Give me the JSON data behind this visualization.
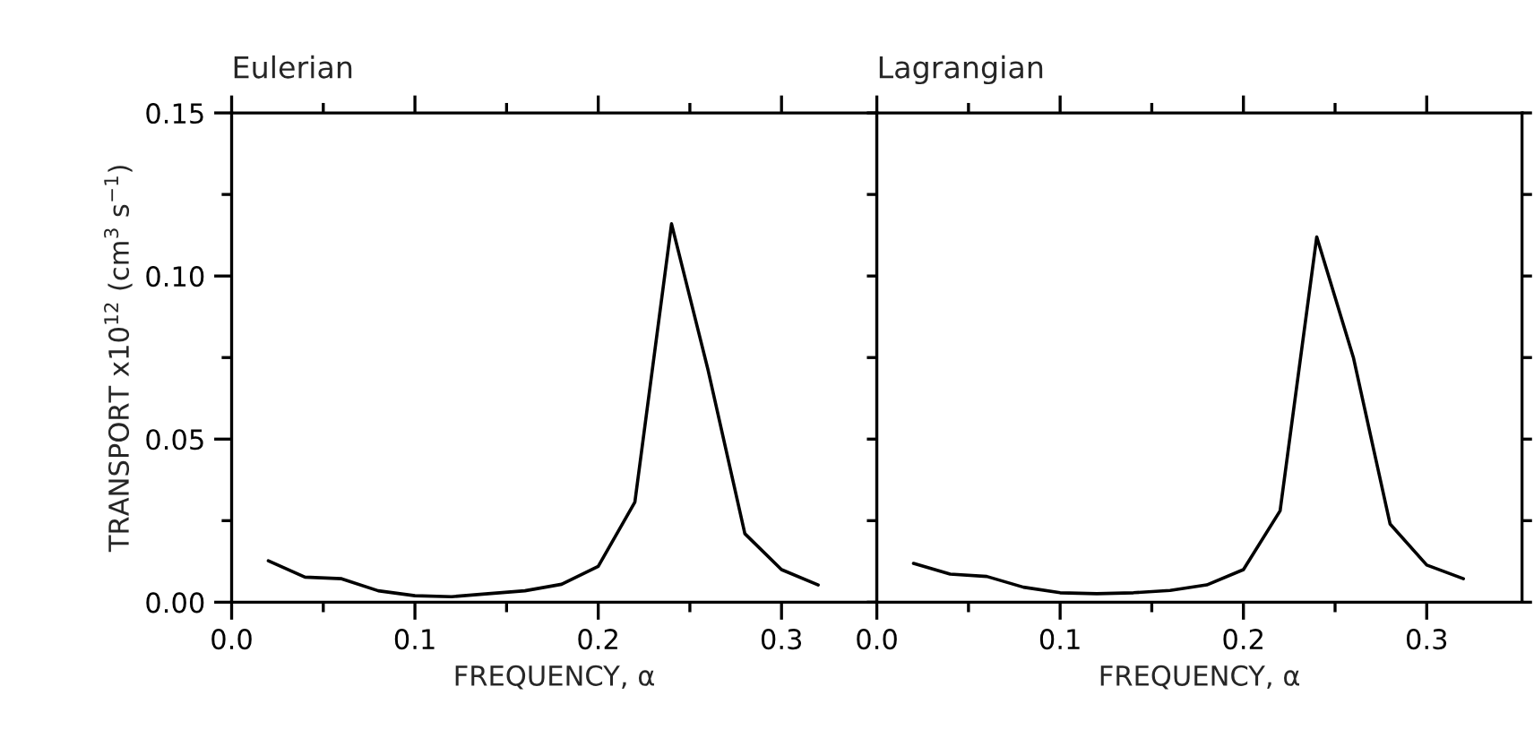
{
  "chart_data": [
    {
      "type": "line",
      "title": "Eulerian",
      "xlabel": "FREQUENCY, α",
      "ylabel": "TRANSPORT x10$^{12}$ (cm$^{3}$ s$^{−1}$)",
      "x": [
        0.02,
        0.04,
        0.06,
        0.08,
        0.1,
        0.12,
        0.14,
        0.16,
        0.18,
        0.2,
        0.22,
        0.24,
        0.26,
        0.28,
        0.3,
        0.32
      ],
      "series": [
        {
          "color": "#000000",
          "values": [
            0.0127,
            0.0077,
            0.0072,
            0.0035,
            0.002,
            0.0017,
            0.0026,
            0.0035,
            0.0055,
            0.011,
            0.0307,
            0.116,
            0.071,
            0.021,
            0.01,
            0.0053
          ]
        }
      ],
      "xlim": [
        0,
        0.352
      ],
      "ylim": [
        0,
        0.15
      ],
      "xticks": [
        {
          "value": 0,
          "label": "0.0"
        },
        {
          "value": 0.05,
          "label": null
        },
        0.1,
        {
          "value": 0.15,
          "label": null
        },
        0.2,
        {
          "value": 0.25,
          "label": null
        },
        0.3
      ],
      "yticks": [
        {
          "value": 0,
          "label": "0.00"
        },
        {
          "value": 0.025,
          "label": null
        },
        {
          "value": 0.05,
          "label": "0.05"
        },
        {
          "value": 0.075,
          "label": null
        },
        {
          "value": 0.1,
          "label": "0.10"
        },
        {
          "value": 0.125,
          "label": null
        },
        0.15
      ],
      "marker": "none",
      "line_style": "solid"
    },
    {
      "type": "line",
      "title": "Lagrangian",
      "xlabel": "FREQUENCY, α",
      "x": [
        0.02,
        0.04,
        0.06,
        0.08,
        0.1,
        0.12,
        0.14,
        0.16,
        0.18,
        0.2,
        0.22,
        0.24,
        0.26,
        0.28,
        0.3,
        0.32
      ],
      "series": [
        {
          "color": "#000000",
          "values": [
            0.0119,
            0.0086,
            0.0079,
            0.0046,
            0.0029,
            0.0026,
            0.0029,
            0.0036,
            0.0053,
            0.01,
            0.028,
            0.112,
            0.075,
            0.024,
            0.0114,
            0.0072
          ]
        }
      ],
      "xlim": [
        0,
        0.352
      ],
      "ylim": [
        0,
        0.15
      ],
      "xticks": [
        {
          "value": 0,
          "label": "0.0"
        },
        {
          "value": 0.05,
          "label": null
        },
        0.1,
        {
          "value": 0.15,
          "label": null
        },
        0.2,
        {
          "value": 0.25,
          "label": null
        },
        0.3
      ],
      "yticks": [
        {
          "value": 0,
          "label": null
        },
        {
          "value": 0.025,
          "label": null
        },
        {
          "value": 0.05,
          "label": null
        },
        {
          "value": 0.075,
          "label": null
        },
        {
          "value": 0.1,
          "label": null
        },
        {
          "value": 0.125,
          "label": null
        },
        {
          "value": 0.15,
          "label": null
        }
      ],
      "tick_labels": "x",
      "marker": "none",
      "line_style": "solid"
    }
  ]
}
